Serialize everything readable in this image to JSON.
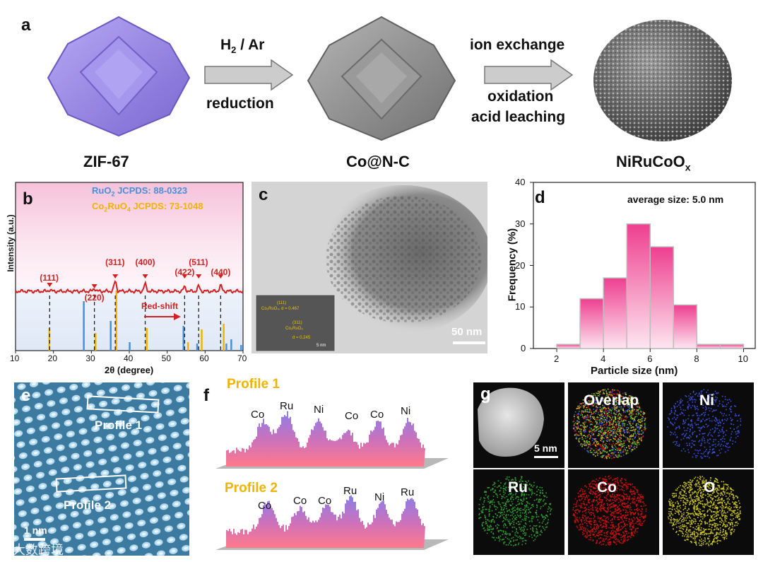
{
  "panel_a": {
    "label": "a",
    "step1": {
      "top": "H",
      "top_sub": "2",
      "top_rest": " / Ar",
      "bottom": "reduction"
    },
    "step2": {
      "top": "ion exchange",
      "bottom1": "oxidation",
      "bottom2": "acid leaching"
    },
    "names": {
      "zif": "ZIF-67",
      "co": "Co@N-C",
      "final": "NiRuCoO",
      "final_sub": "x"
    },
    "colors": {
      "zif": "#9b8ae8",
      "co": "#8a8a8a",
      "arrow": "#c9c9c9"
    }
  },
  "panel_b": {
    "label": "b",
    "legend": [
      {
        "pre": "RuO",
        "sub": "2",
        "post": " JCPDS: 88-0323",
        "color": "#4a90d9"
      },
      {
        "pre": "Co",
        "sub": "2",
        "mid": "RuO",
        "sub2": "4",
        "post": " JCPDS: 73-1048",
        "color": "#f0b400"
      }
    ],
    "peak_labels": [
      "(111)",
      "(220)",
      "(311)",
      "(400)",
      "(422)",
      "(511)",
      "(440)"
    ],
    "red_shift": "Red-shift",
    "ylabel": "Intensity (a.u.)",
    "xlabel": "2θ (degree)",
    "x_ticks": [
      "10",
      "20",
      "30",
      "40",
      "50",
      "60",
      "70"
    ]
  },
  "panel_c": {
    "label": "c",
    "scale": "50 nm",
    "inset_text": [
      "(111)",
      "Co₂RuO₄, d = 0.467",
      "(311)",
      "Co₂RuO₄",
      "d = 0.245",
      "5 nm"
    ]
  },
  "panel_d": {
    "label": "d",
    "annotation": "average size: 5.0 nm",
    "ylabel": "Frequency (%)",
    "xlabel": "Particle size (nm)",
    "x_ticks": [
      "2",
      "4",
      "6",
      "8",
      "10"
    ],
    "y_ticks": [
      "0",
      "10",
      "20",
      "30",
      "40"
    ]
  },
  "panel_e": {
    "label": "e",
    "profile1": "Profile 1",
    "profile2": "Profile 2",
    "scale": "1 nm"
  },
  "panel_f": {
    "label": "f",
    "profile1": {
      "title": "Profile 1",
      "elements": [
        "Co",
        "Ru",
        "Ni",
        "Co",
        "Co",
        "Ni"
      ]
    },
    "profile2": {
      "title": "Profile 2",
      "elements": [
        "Co",
        "Co",
        "Co",
        "Ru",
        "Ni",
        "Ru"
      ]
    }
  },
  "panel_g": {
    "label": "g",
    "scale": "5 nm",
    "tiles": [
      "Overlap",
      "Ni",
      "Ru",
      "Co",
      "O"
    ],
    "tile_colors": {
      "Ni": "#3a50d8",
      "Ru": "#2ea030",
      "Co": "#d01010",
      "O": "#c8c020"
    }
  },
  "watermark": "大数跨境",
  "chart_data": [
    {
      "type": "line",
      "panel": "b",
      "xlabel": "2θ (degree)",
      "ylabel": "Intensity (a.u.)",
      "xlim": [
        10,
        70
      ],
      "peaks": [
        {
          "label": "(111)",
          "x": 19.0
        },
        {
          "label": "(220)",
          "x": 30.8
        },
        {
          "label": "(311)",
          "x": 36.3
        },
        {
          "label": "(400)",
          "x": 44.2
        },
        {
          "label": "(422)",
          "x": 54.6
        },
        {
          "label": "(511)",
          "x": 58.3
        },
        {
          "label": "(440)",
          "x": 64.1
        }
      ]
    },
    {
      "type": "bar",
      "panel": "d",
      "xlabel": "Particle size (nm)",
      "ylabel": "Frequency (%)",
      "xlim": [
        1,
        10.5
      ],
      "ylim": [
        0,
        40
      ],
      "bins": [
        [
          2,
          3
        ],
        [
          3,
          4
        ],
        [
          4,
          5
        ],
        [
          5,
          6
        ],
        [
          6,
          7
        ],
        [
          7,
          8
        ],
        [
          8,
          9
        ],
        [
          9,
          10
        ]
      ],
      "values": [
        1,
        12,
        17,
        30,
        24.5,
        10.5,
        1,
        1
      ]
    }
  ]
}
